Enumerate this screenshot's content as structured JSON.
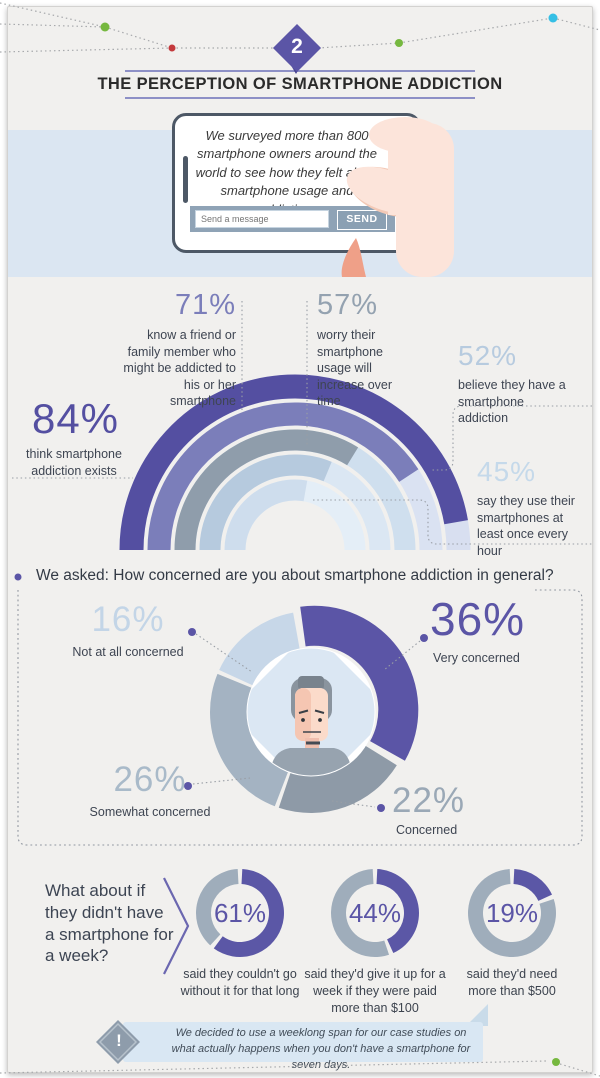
{
  "header": {
    "step_number": "2",
    "title": "THE PERCEPTION OF SMARTPHONE ADDICTION"
  },
  "phone": {
    "message": "We surveyed more than 800 smartphone owners around the world to see how they felt about smartphone usage and addiction.",
    "input_placeholder": "Send a message",
    "send_label": "SEND"
  },
  "colors": {
    "accent_purple": "#5b55a6",
    "band_blue": "#dbe6f2",
    "panel_bg": "#f1f0ee",
    "slate": "#8fa3b6"
  },
  "chart_data": [
    {
      "type": "semicircle-arc-rings",
      "note": "nested half-circle arcs, filled share sweeps clockwise from left baseline",
      "series": [
        {
          "value": 84,
          "display": "84%",
          "label": "think smartphone addiction exists",
          "color": "#544fa1",
          "remainder_color": "#d8dff0"
        },
        {
          "value": 71,
          "display": "71%",
          "label": "know a friend or family member who might be addicted to his or her smartphone",
          "color": "#7b7eba",
          "remainder_color": "#dae2f2"
        },
        {
          "value": 57,
          "display": "57%",
          "label": "worry their smartphone usage will increase over time",
          "color": "#8f9dab",
          "remainder_color": "#cfdfee"
        },
        {
          "value": 52,
          "display": "52%",
          "label": "believe they have a smartphone addiction",
          "color": "#b6cade",
          "remainder_color": "#dbe7f3"
        },
        {
          "value": 45,
          "display": "45%",
          "label": "say they use their smartphones at least once every hour",
          "color": "#cedded",
          "remainder_color": "#e4eef7"
        }
      ]
    },
    {
      "type": "donut",
      "question": "We asked: How concerned are you about smartphone addiction in general?",
      "start_angle": -9,
      "slices": [
        {
          "value": 36,
          "display": "36%",
          "label": "Very concerned",
          "color": "#5b55a6"
        },
        {
          "value": 22,
          "display": "22%",
          "label": "Concerned",
          "color": "#8e9aa7"
        },
        {
          "value": 26,
          "display": "26%",
          "label": "Somewhat concerned",
          "color": "#a4b3c2"
        },
        {
          "value": 16,
          "display": "16%",
          "label": "Not at all concerned",
          "color": "#c7d7e8"
        }
      ]
    },
    {
      "type": "donut-group",
      "prompt": "What about if they didn't have a smartphone for a week?",
      "filled_color": "#5b57a6",
      "rest_color": "#9fadbb",
      "donuts": [
        {
          "value": 61,
          "display": "61%",
          "caption": "said they couldn't go without it for that long"
        },
        {
          "value": 44,
          "display": "44%",
          "caption": "said they'd give it up for a week if they were paid more than $100"
        },
        {
          "value": 19,
          "display": "19%",
          "caption": "said they'd need more than $500"
        }
      ]
    }
  ],
  "footnote": {
    "icon_char": "!",
    "text": "We decided to use a weeklong span for our case studies on what actually happens when you don't have a smartphone for seven days."
  }
}
